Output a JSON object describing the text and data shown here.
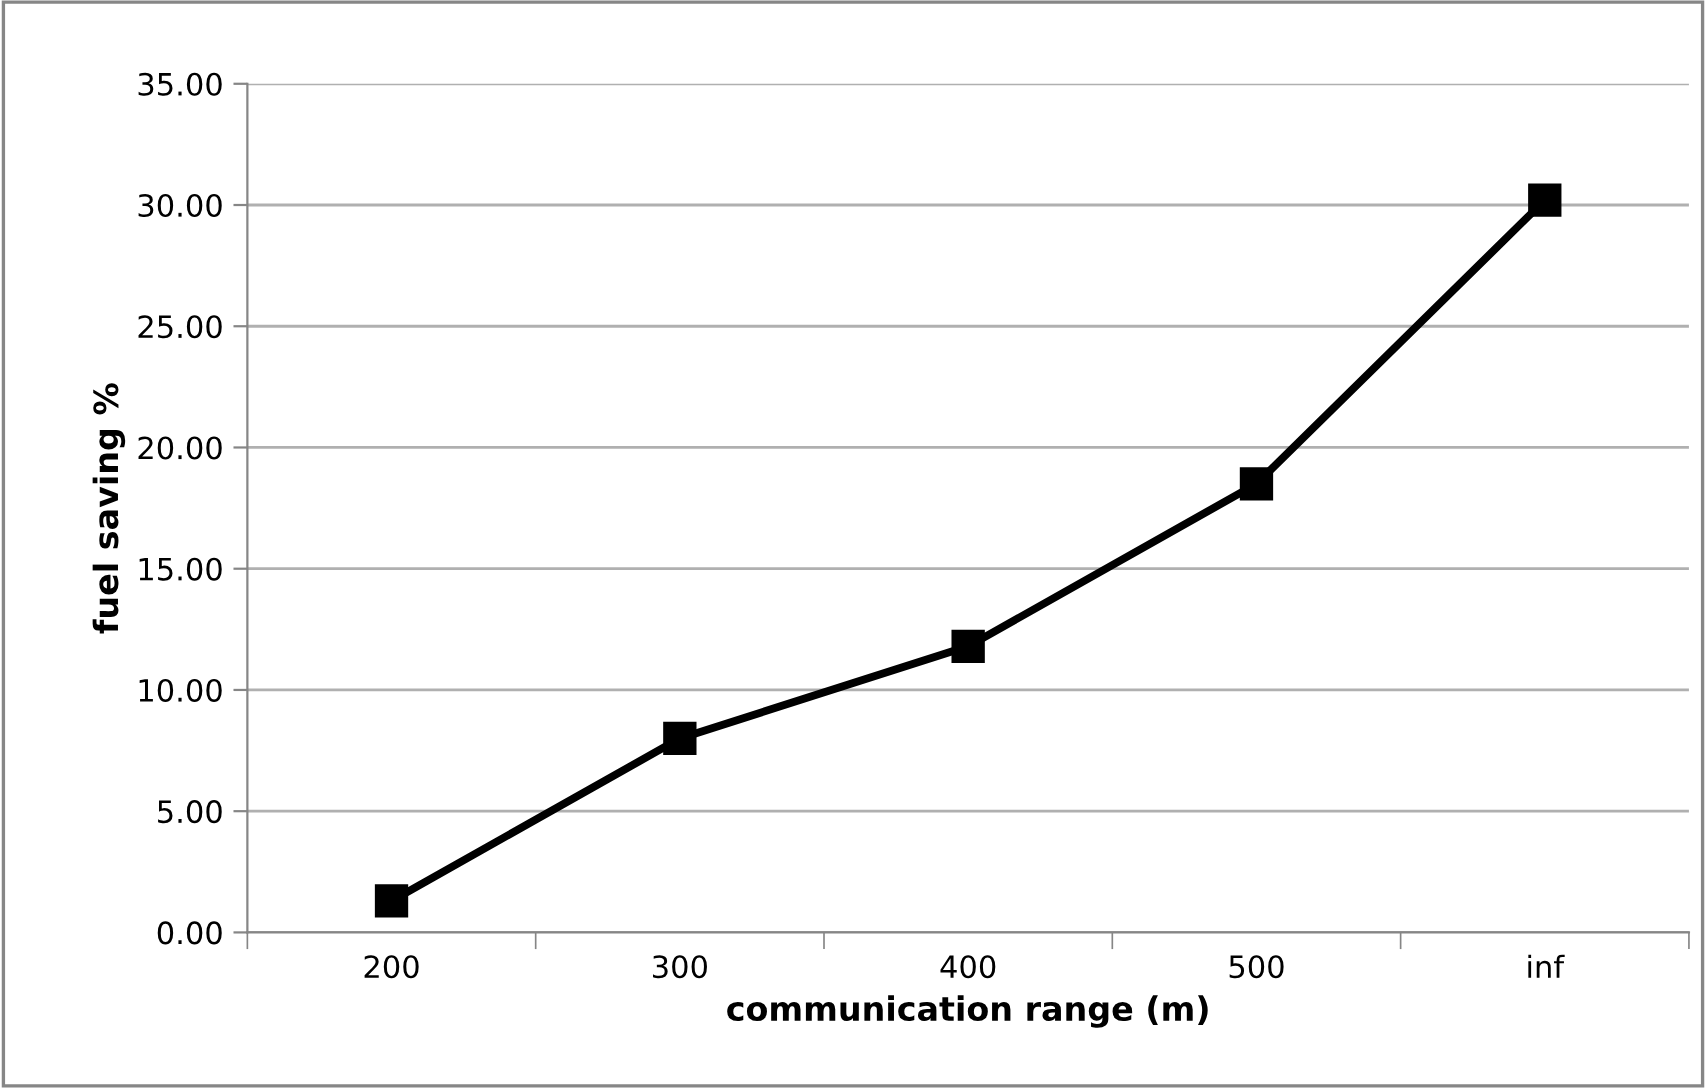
{
  "chart_data": {
    "type": "line",
    "xlabel": "communication range (m)",
    "ylabel": "fuel saving %",
    "categories": [
      "200",
      "300",
      "400",
      "500",
      "inf"
    ],
    "series": [
      {
        "color": "#000000",
        "values": [
          1.3,
          8.0,
          11.8,
          18.5,
          30.2
        ]
      }
    ],
    "ylim": [
      0,
      35
    ],
    "yticks": [
      {
        "value": 0,
        "label": "0.00"
      },
      {
        "value": 5,
        "label": "5.00"
      },
      {
        "value": 10,
        "label": "10.00"
      },
      {
        "value": 15,
        "label": "15.00"
      },
      {
        "value": 20,
        "label": "20.00"
      },
      {
        "value": 25,
        "label": "25.00"
      },
      {
        "value": 30,
        "label": "30.00"
      },
      {
        "value": 35,
        "label": "35.00"
      }
    ],
    "grid": "y",
    "marker": "square",
    "line_style": "solid",
    "legend": false
  }
}
